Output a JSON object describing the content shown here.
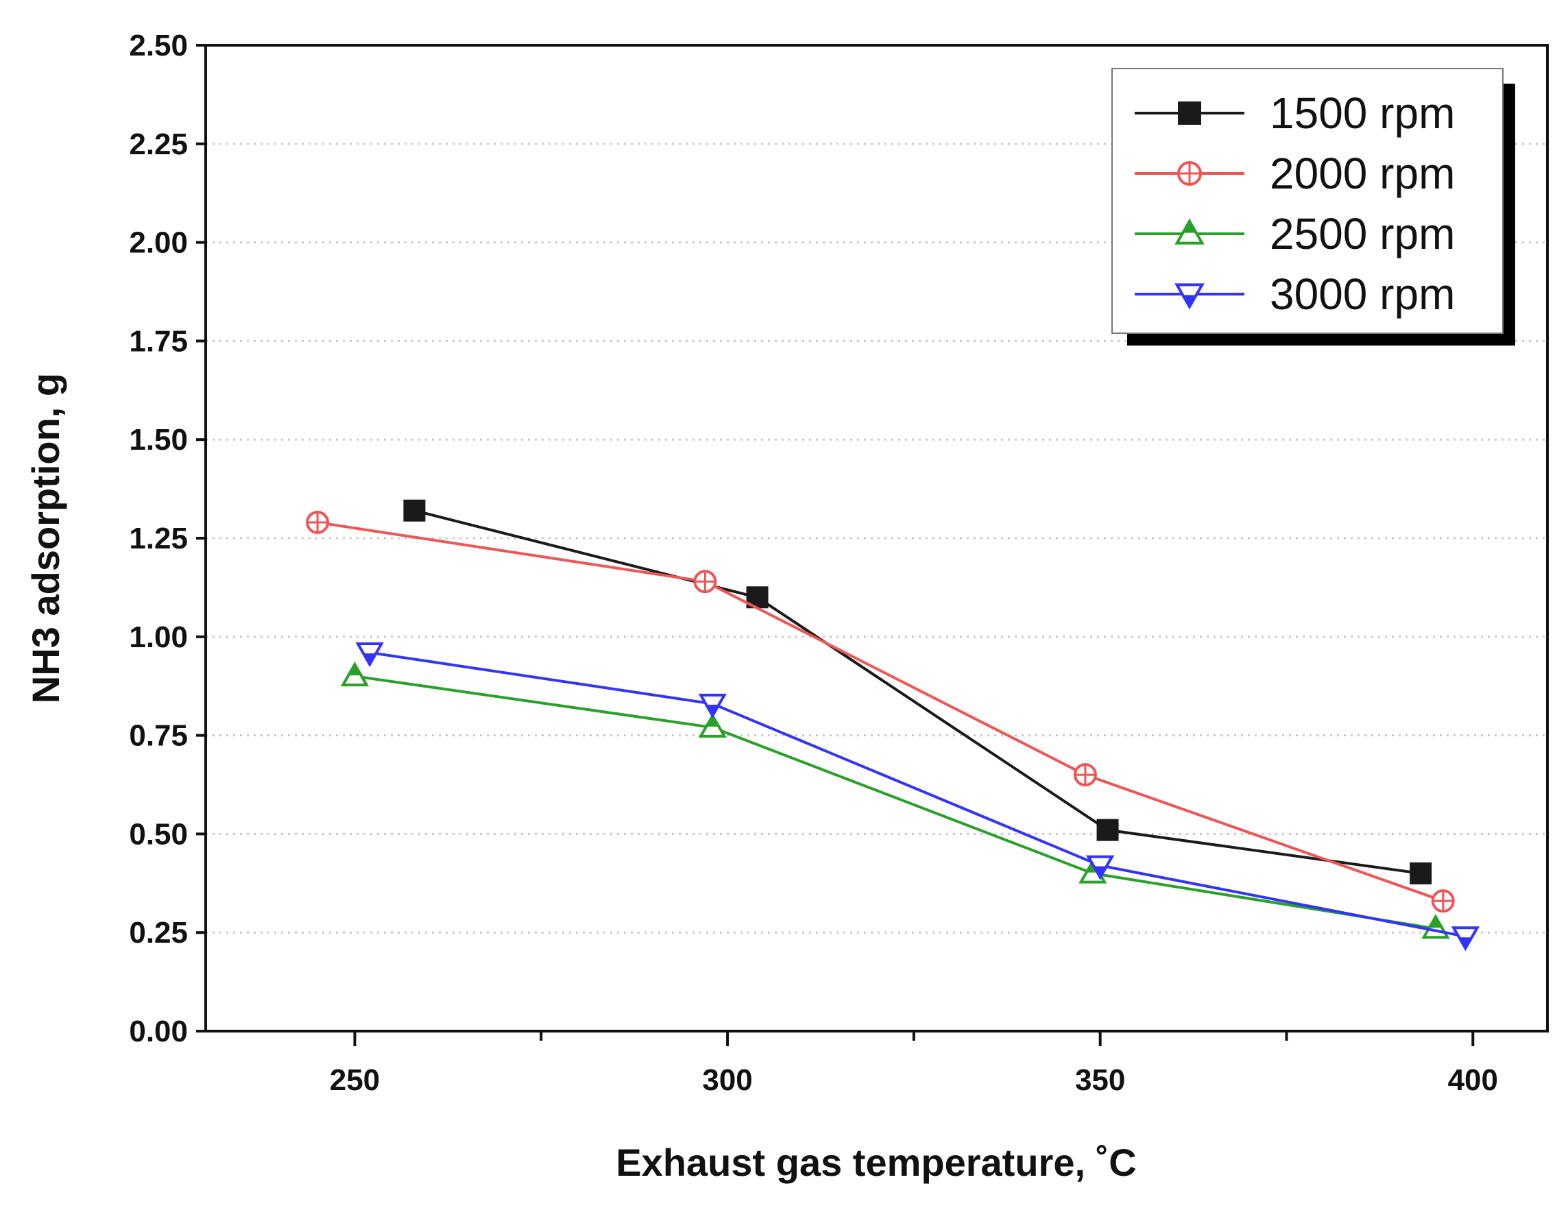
{
  "chart_data": {
    "type": "line",
    "title": "",
    "xlabel": "Exhaust gas temperature, ˚C",
    "ylabel": "NH3 adsorption, g",
    "xlim": [
      230,
      410
    ],
    "ylim": [
      0,
      2.5
    ],
    "x_ticks": [
      250,
      300,
      350,
      400
    ],
    "x_tick_labels": [
      "250",
      "300",
      "350",
      "400"
    ],
    "x_minor_ticks": [
      275,
      325,
      375
    ],
    "y_ticks": [
      0,
      0.25,
      0.5,
      0.75,
      1.0,
      1.25,
      1.5,
      1.75,
      2.0,
      2.25,
      2.5
    ],
    "y_tick_labels": [
      "0.00",
      "0.25",
      "0.50",
      "0.75",
      "1.00",
      "1.25",
      "1.50",
      "1.75",
      "2.00",
      "2.25",
      "2.50"
    ],
    "grid": "horizontal dotted",
    "legend_position": "top-right",
    "series": [
      {
        "name": "1500 rpm",
        "color": "#1a1a1a",
        "marker": "square-filled",
        "x": [
          258,
          304,
          351,
          393
        ],
        "y": [
          1.32,
          1.1,
          0.51,
          0.4
        ]
      },
      {
        "name": "2000 rpm",
        "color": "#f05555",
        "marker": "circle-crosshair",
        "x": [
          245,
          297,
          348,
          396
        ],
        "y": [
          1.29,
          1.14,
          0.65,
          0.33
        ]
      },
      {
        "name": "2500 rpm",
        "color": "#2aa02a",
        "marker": "triangle-up-half",
        "x": [
          250,
          298,
          349,
          395
        ],
        "y": [
          0.9,
          0.77,
          0.4,
          0.26
        ]
      },
      {
        "name": "3000 rpm",
        "color": "#3333ff",
        "marker": "triangle-down-half",
        "x": [
          252,
          298,
          350,
          399
        ],
        "y": [
          0.96,
          0.83,
          0.42,
          0.24
        ]
      }
    ]
  }
}
